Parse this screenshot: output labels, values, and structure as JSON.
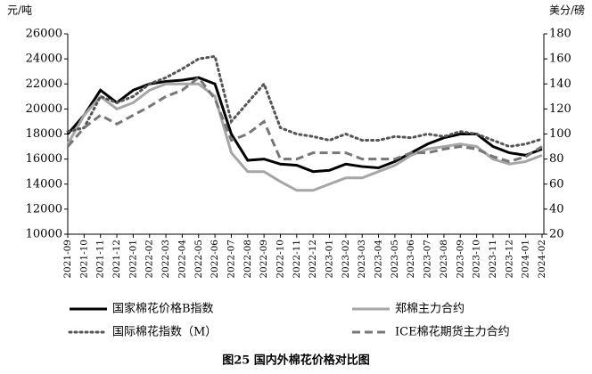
{
  "chart_data": {
    "type": "line",
    "title": "图25  国内外棉花价格对比图",
    "ylabel": "元/吨",
    "y2label": "美分/磅",
    "categories": [
      "2021-09",
      "2021-10",
      "2021-11",
      "2021-12",
      "2022-01",
      "2022-02",
      "2022-03",
      "2022-04",
      "2022-05",
      "2022-06",
      "2022-07",
      "2022-08",
      "2022-09",
      "2022-10",
      "2022-11",
      "2022-12",
      "2023-01",
      "2023-02",
      "2023-03",
      "2023-04",
      "2023-05",
      "2023-06",
      "2023-07",
      "2023-08",
      "2023-09",
      "2023-10",
      "2023-11",
      "2023-12",
      "2024-01",
      "2024-02"
    ],
    "series": [
      {
        "name": "国家棉花价格B指数",
        "color": "#000000",
        "style": "solid",
        "values": [
          18000,
          19500,
          21500,
          20500,
          21500,
          22000,
          22200,
          22300,
          22500,
          22000,
          18000,
          15900,
          16000,
          15600,
          15500,
          15000,
          15100,
          15600,
          15400,
          15300,
          15800,
          16500,
          17200,
          17700,
          18000,
          18000,
          17000,
          16500,
          16300,
          16800
        ]
      },
      {
        "name": "郑棉主力合约",
        "color": "#a6a6a6",
        "style": "solid",
        "values": [
          17200,
          19500,
          21000,
          20000,
          20500,
          21500,
          22000,
          22000,
          22000,
          21000,
          16500,
          15000,
          15000,
          14200,
          13500,
          13500,
          14000,
          14500,
          14500,
          15000,
          15500,
          16300,
          16800,
          17000,
          17200,
          17000,
          16000,
          15600,
          15800,
          16300
        ]
      },
      {
        "name": "国际棉花指数（M）",
        "color": "#555555",
        "style": "dotted",
        "axis": "y2",
        "values": [
          102,
          105,
          130,
          125,
          130,
          140,
          145,
          152,
          160,
          162,
          110,
          125,
          140,
          105,
          100,
          98,
          95,
          100,
          95,
          95,
          98,
          97,
          100,
          98,
          102,
          100,
          95,
          90,
          92,
          96
        ]
      },
      {
        "name": "ICE棉花期货主力合约",
        "color": "#777777",
        "style": "dashed",
        "axis": "y2",
        "values": [
          90,
          105,
          115,
          108,
          115,
          122,
          130,
          135,
          145,
          128,
          95,
          100,
          110,
          80,
          80,
          85,
          85,
          85,
          80,
          80,
          80,
          85,
          85,
          88,
          90,
          88,
          82,
          78,
          82,
          90
        ]
      }
    ],
    "ylim": [
      10000,
      26000
    ],
    "yticks": [
      10000,
      12000,
      14000,
      16000,
      18000,
      20000,
      22000,
      24000,
      26000
    ],
    "y2lim": [
      20,
      180
    ],
    "y2ticks": [
      20,
      40,
      60,
      80,
      100,
      120,
      140,
      160,
      180
    ],
    "grid": false
  }
}
